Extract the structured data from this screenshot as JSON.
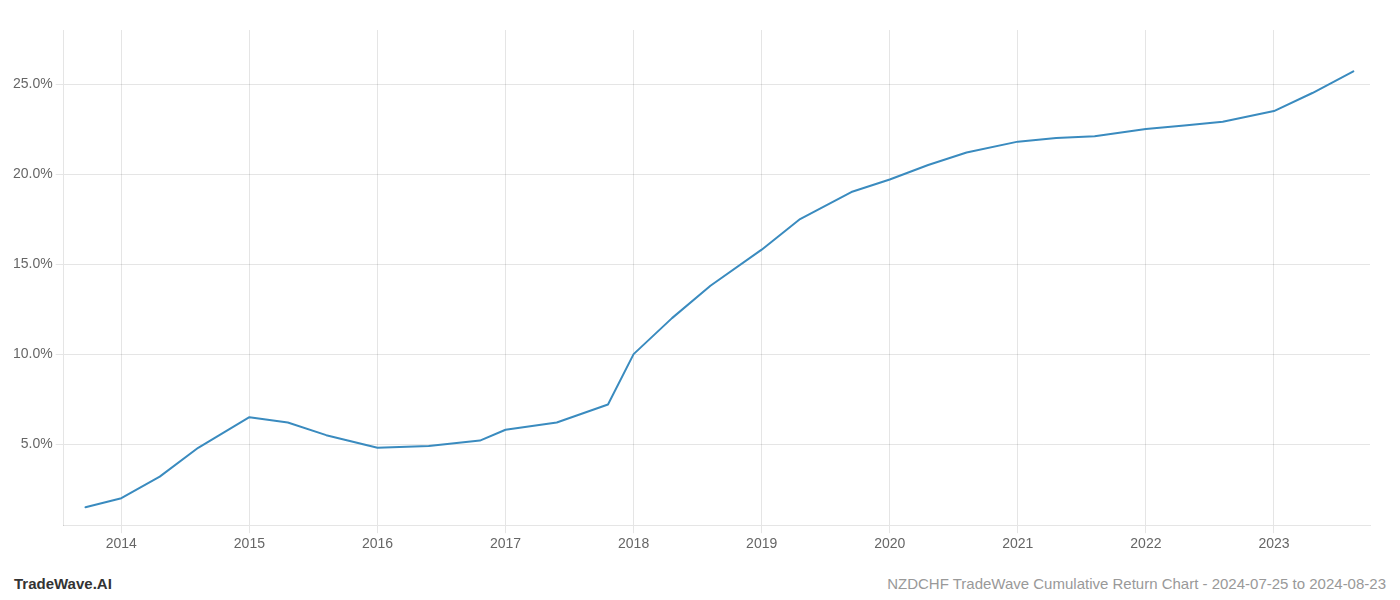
{
  "chart_data": {
    "type": "line",
    "x": [
      2013.72,
      2014.0,
      2014.3,
      2014.6,
      2015.0,
      2015.3,
      2015.6,
      2016.0,
      2016.4,
      2016.8,
      2017.0,
      2017.4,
      2017.8,
      2018.0,
      2018.3,
      2018.6,
      2019.0,
      2019.3,
      2019.7,
      2020.0,
      2020.3,
      2020.6,
      2021.0,
      2021.3,
      2021.6,
      2022.0,
      2022.3,
      2022.6,
      2023.0,
      2023.3,
      2023.62
    ],
    "values": [
      1.5,
      2.0,
      3.2,
      4.8,
      6.5,
      6.2,
      5.5,
      4.8,
      4.9,
      5.2,
      5.8,
      6.2,
      7.2,
      10.0,
      12.0,
      13.8,
      15.8,
      17.5,
      19.0,
      19.7,
      20.5,
      21.2,
      21.8,
      22.0,
      22.1,
      22.5,
      22.7,
      22.9,
      23.5,
      24.5,
      25.7
    ],
    "color": "#3a8bbf",
    "xlim": [
      2013.55,
      2023.75
    ],
    "ylim": [
      0.5,
      28.0
    ],
    "xticks": [
      2014,
      2015,
      2016,
      2017,
      2018,
      2019,
      2020,
      2021,
      2022,
      2023
    ],
    "yticks": [
      {
        "value": 5.0,
        "label": "5.0%"
      },
      {
        "value": 10.0,
        "label": "10.0%"
      },
      {
        "value": 15.0,
        "label": "15.0%"
      },
      {
        "value": 20.0,
        "label": "20.0%"
      },
      {
        "value": 25.0,
        "label": "25.0%"
      }
    ],
    "grid": true,
    "annotations": [
      "TradeWave.AI",
      "NZDCHF TradeWave Cumulative Return Chart - 2024-07-25 to 2024-08-23"
    ]
  }
}
